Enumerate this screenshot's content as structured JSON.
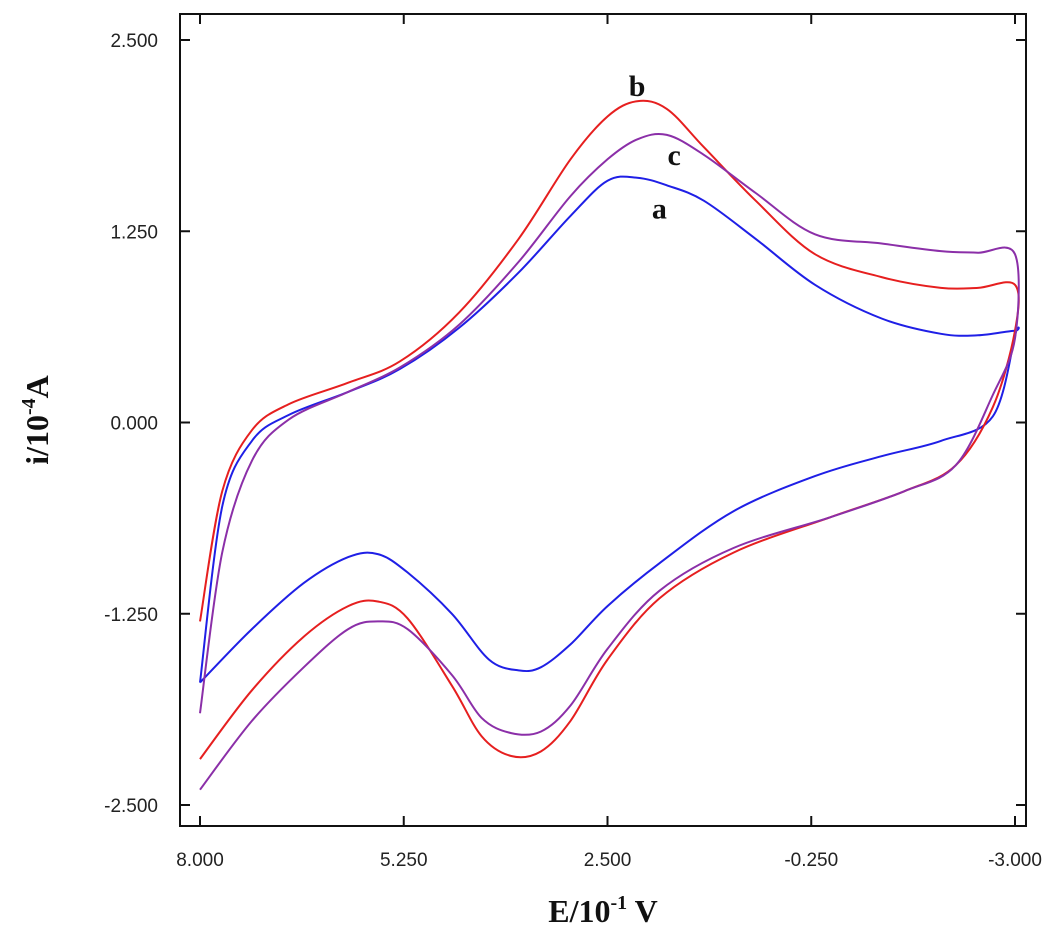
{
  "chart_data": {
    "type": "line",
    "title": "",
    "xlabel_main": "E/10",
    "xlabel_sup": "-1",
    "xlabel_unit": " V",
    "ylabel_main": "i/10",
    "ylabel_sup": "-4",
    "ylabel_unit": "A",
    "xlim": [
      8.0,
      -3.0
    ],
    "ylim": [
      -2.6,
      2.6
    ],
    "x_reversed": true,
    "grid": false,
    "legend": "none",
    "x_ticks": [
      8.0,
      5.25,
      2.5,
      -0.25,
      -3.0
    ],
    "x_tick_labels": [
      "8.000",
      "5.250",
      "2.500",
      "-0.250",
      "-3.000"
    ],
    "y_ticks": [
      2.5,
      1.25,
      0.0,
      -1.25,
      -2.5
    ],
    "y_tick_labels": [
      "2.500",
      "1.250",
      "0.000",
      "-1.250",
      "-2.500"
    ],
    "series": [
      {
        "label": "a",
        "color": "#1f1fe6",
        "label_pos": [
          1.8,
          1.4
        ],
        "points": [
          [
            8.0,
            -1.7
          ],
          [
            7.7,
            -0.55
          ],
          [
            7.3,
            -0.12
          ],
          [
            6.8,
            0.05
          ],
          [
            6.0,
            0.2
          ],
          [
            5.3,
            0.35
          ],
          [
            4.5,
            0.62
          ],
          [
            3.7,
            0.98
          ],
          [
            3.0,
            1.35
          ],
          [
            2.5,
            1.58
          ],
          [
            2.1,
            1.6
          ],
          [
            1.7,
            1.55
          ],
          [
            1.2,
            1.45
          ],
          [
            0.5,
            1.2
          ],
          [
            -0.3,
            0.9
          ],
          [
            -1.2,
            0.68
          ],
          [
            -2.0,
            0.58
          ],
          [
            -2.5,
            0.57
          ],
          [
            -3.0,
            0.6
          ],
          [
            -3.0,
            0.57
          ],
          [
            -2.7,
            0.04
          ],
          [
            -2.0,
            -0.12
          ],
          [
            -1.2,
            -0.22
          ],
          [
            -0.3,
            -0.35
          ],
          [
            0.8,
            -0.58
          ],
          [
            1.8,
            -0.92
          ],
          [
            2.5,
            -1.2
          ],
          [
            3.0,
            -1.45
          ],
          [
            3.4,
            -1.6
          ],
          [
            3.7,
            -1.62
          ],
          [
            4.1,
            -1.55
          ],
          [
            4.6,
            -1.25
          ],
          [
            5.2,
            -0.98
          ],
          [
            5.6,
            -0.86
          ],
          [
            6.0,
            -0.88
          ],
          [
            6.6,
            -1.05
          ],
          [
            7.3,
            -1.35
          ],
          [
            8.0,
            -1.7
          ]
        ]
      },
      {
        "label": "b",
        "color": "#e61f1f",
        "label_pos": [
          2.1,
          2.2
        ],
        "points": [
          [
            8.0,
            -1.3
          ],
          [
            7.7,
            -0.45
          ],
          [
            7.3,
            -0.05
          ],
          [
            6.8,
            0.12
          ],
          [
            6.0,
            0.26
          ],
          [
            5.3,
            0.4
          ],
          [
            4.5,
            0.72
          ],
          [
            3.7,
            1.2
          ],
          [
            3.0,
            1.72
          ],
          [
            2.5,
            2.0
          ],
          [
            2.1,
            2.1
          ],
          [
            1.7,
            2.05
          ],
          [
            1.2,
            1.8
          ],
          [
            0.5,
            1.45
          ],
          [
            -0.3,
            1.1
          ],
          [
            -1.2,
            0.95
          ],
          [
            -2.0,
            0.88
          ],
          [
            -2.5,
            0.88
          ],
          [
            -3.0,
            0.9
          ],
          [
            -3.0,
            0.6
          ],
          [
            -2.7,
            0.1
          ],
          [
            -2.2,
            -0.28
          ],
          [
            -1.5,
            -0.45
          ],
          [
            -0.5,
            -0.62
          ],
          [
            0.8,
            -0.85
          ],
          [
            1.8,
            -1.15
          ],
          [
            2.5,
            -1.55
          ],
          [
            3.0,
            -1.95
          ],
          [
            3.4,
            -2.15
          ],
          [
            3.8,
            -2.18
          ],
          [
            4.2,
            -2.05
          ],
          [
            4.6,
            -1.72
          ],
          [
            5.2,
            -1.28
          ],
          [
            5.6,
            -1.17
          ],
          [
            6.0,
            -1.2
          ],
          [
            6.6,
            -1.4
          ],
          [
            7.3,
            -1.75
          ],
          [
            8.0,
            -2.2
          ]
        ]
      },
      {
        "label": "c",
        "color": "#8b2fa8",
        "label_pos": [
          1.6,
          1.75
        ],
        "points": [
          [
            8.0,
            -1.9
          ],
          [
            7.7,
            -0.85
          ],
          [
            7.3,
            -0.25
          ],
          [
            6.8,
            0.02
          ],
          [
            6.0,
            0.2
          ],
          [
            5.3,
            0.36
          ],
          [
            4.5,
            0.64
          ],
          [
            3.7,
            1.05
          ],
          [
            3.0,
            1.48
          ],
          [
            2.5,
            1.72
          ],
          [
            2.1,
            1.85
          ],
          [
            1.7,
            1.88
          ],
          [
            1.2,
            1.75
          ],
          [
            0.5,
            1.5
          ],
          [
            -0.3,
            1.23
          ],
          [
            -1.2,
            1.17
          ],
          [
            -2.0,
            1.12
          ],
          [
            -2.5,
            1.11
          ],
          [
            -3.0,
            1.1
          ],
          [
            -3.0,
            0.55
          ],
          [
            -2.7,
            0.18
          ],
          [
            -2.2,
            -0.28
          ],
          [
            -1.5,
            -0.45
          ],
          [
            -0.5,
            -0.62
          ],
          [
            0.8,
            -0.82
          ],
          [
            1.8,
            -1.1
          ],
          [
            2.5,
            -1.48
          ],
          [
            3.0,
            -1.85
          ],
          [
            3.4,
            -2.02
          ],
          [
            3.8,
            -2.03
          ],
          [
            4.2,
            -1.93
          ],
          [
            4.6,
            -1.65
          ],
          [
            5.2,
            -1.35
          ],
          [
            5.6,
            -1.3
          ],
          [
            6.0,
            -1.35
          ],
          [
            6.6,
            -1.6
          ],
          [
            7.3,
            -1.95
          ],
          [
            8.0,
            -2.4
          ]
        ]
      }
    ]
  }
}
